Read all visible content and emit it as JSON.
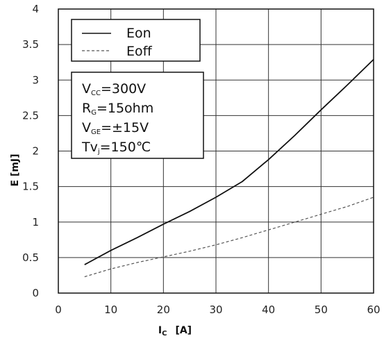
{
  "chart_data": {
    "type": "line",
    "title": "",
    "xlabel": "I",
    "xlabel_sub": "C",
    "xlabel_unit": "[A]",
    "ylabel": "E [mJ]",
    "xlim": [
      0,
      60
    ],
    "ylim": [
      0,
      4
    ],
    "x_ticks": [
      "0",
      "10",
      "20",
      "30",
      "40",
      "50",
      "60"
    ],
    "y_ticks": [
      "0",
      "0.5",
      "1",
      "1.5",
      "2",
      "2.5",
      "3",
      "3.5",
      "4"
    ],
    "grid": true,
    "legend_position": "top-left",
    "series": [
      {
        "name": "Eon",
        "style": "solid",
        "color": "#111111",
        "x": [
          5,
          10,
          15,
          20,
          25,
          30,
          35,
          40,
          45,
          50,
          55,
          60
        ],
        "y": [
          0.4,
          0.6,
          0.78,
          0.97,
          1.15,
          1.35,
          1.57,
          1.88,
          2.22,
          2.58,
          2.93,
          3.29
        ]
      },
      {
        "name": "Eoff",
        "style": "dashed",
        "color": "#555555",
        "x": [
          5,
          10,
          15,
          20,
          25,
          30,
          35,
          40,
          45,
          50,
          55,
          60
        ],
        "y": [
          0.23,
          0.34,
          0.43,
          0.51,
          0.59,
          0.68,
          0.78,
          0.89,
          1.0,
          1.11,
          1.22,
          1.35
        ]
      }
    ],
    "conditions": [
      {
        "main": "V",
        "sub": "CC",
        "rest": "=300V"
      },
      {
        "main": "R",
        "sub": "G",
        "rest": "=15ohm"
      },
      {
        "main": "V",
        "sub": "GE",
        "rest": "=±15V"
      },
      {
        "main": "Tv",
        "sub": "j",
        "rest": "=150℃"
      }
    ]
  }
}
